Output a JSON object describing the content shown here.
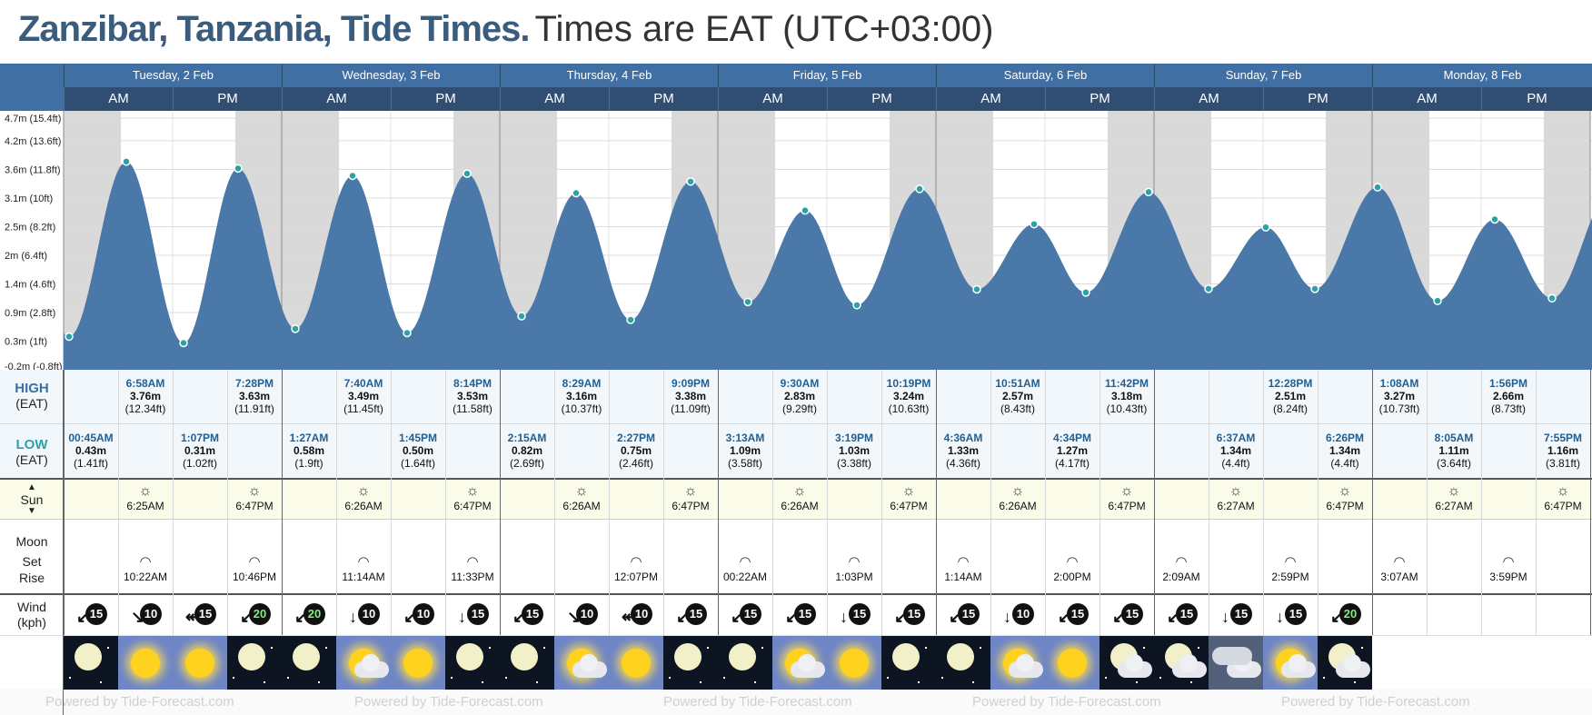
{
  "title": {
    "location": "Zanzibar, Tanzania, Tide Times.",
    "timezone": "Times are EAT (UTC+03:00)"
  },
  "days": [
    "Tuesday, 2 Feb",
    "Wednesday, 3 Feb",
    "Thursday, 4 Feb",
    "Friday, 5 Feb",
    "Saturday, 6 Feb",
    "Sunday, 7 Feb",
    "Monday, 8 Feb"
  ],
  "am_label": "AM",
  "pm_label": "PM",
  "y_axis": [
    "4.7m (15.4ft)",
    "4.2m (13.6ft)",
    "3.6m (11.8ft)",
    "3.1m (10ft)",
    "2.5m (8.2ft)",
    "2m (6.4ft)",
    "1.4m (4.6ft)",
    "0.9m (2.8ft)",
    "0.3m (1ft)",
    "-0.2m (-0.8ft)"
  ],
  "labels": {
    "high": "HIGH",
    "high_tz": "(EAT)",
    "low": "LOW",
    "low_tz": "(EAT)",
    "sun": "Sun",
    "moon": "Moon",
    "set": "Set",
    "rise": "Rise",
    "wind": "Wind",
    "wind_unit": "(kph)"
  },
  "high_tides": [
    {
      "col": 1,
      "time": "6:58AM",
      "m": "3.76m",
      "ft": "(12.34ft)"
    },
    {
      "col": 3,
      "time": "7:28PM",
      "m": "3.63m",
      "ft": "(11.91ft)"
    },
    {
      "col": 5,
      "time": "7:40AM",
      "m": "3.49m",
      "ft": "(11.45ft)"
    },
    {
      "col": 7,
      "time": "8:14PM",
      "m": "3.53m",
      "ft": "(11.58ft)"
    },
    {
      "col": 9,
      "time": "8:29AM",
      "m": "3.16m",
      "ft": "(10.37ft)"
    },
    {
      "col": 11,
      "time": "9:09PM",
      "m": "3.38m",
      "ft": "(11.09ft)"
    },
    {
      "col": 13,
      "time": "9:30AM",
      "m": "2.83m",
      "ft": "(9.29ft)"
    },
    {
      "col": 15,
      "time": "10:19PM",
      "m": "3.24m",
      "ft": "(10.63ft)"
    },
    {
      "col": 17,
      "time": "10:51AM",
      "m": "2.57m",
      "ft": "(8.43ft)"
    },
    {
      "col": 19,
      "time": "11:42PM",
      "m": "3.18m",
      "ft": "(10.43ft)"
    },
    {
      "col": 22,
      "time": "12:28PM",
      "m": "2.51m",
      "ft": "(8.24ft)"
    },
    {
      "col": 24,
      "time": "1:08AM",
      "m": "3.27m",
      "ft": "(10.73ft)"
    },
    {
      "col": 26,
      "time": "1:56PM",
      "m": "2.66m",
      "ft": "(8.73ft)"
    }
  ],
  "low_tides": [
    {
      "col": 0,
      "time": "00:45AM",
      "m": "0.43m",
      "ft": "(1.41ft)"
    },
    {
      "col": 2,
      "time": "1:07PM",
      "m": "0.31m",
      "ft": "(1.02ft)"
    },
    {
      "col": 4,
      "time": "1:27AM",
      "m": "0.58m",
      "ft": "(1.9ft)"
    },
    {
      "col": 6,
      "time": "1:45PM",
      "m": "0.50m",
      "ft": "(1.64ft)"
    },
    {
      "col": 8,
      "time": "2:15AM",
      "m": "0.82m",
      "ft": "(2.69ft)"
    },
    {
      "col": 10,
      "time": "2:27PM",
      "m": "0.75m",
      "ft": "(2.46ft)"
    },
    {
      "col": 12,
      "time": "3:13AM",
      "m": "1.09m",
      "ft": "(3.58ft)"
    },
    {
      "col": 14,
      "time": "3:19PM",
      "m": "1.03m",
      "ft": "(3.38ft)"
    },
    {
      "col": 16,
      "time": "4:36AM",
      "m": "1.33m",
      "ft": "(4.36ft)"
    },
    {
      "col": 18,
      "time": "4:34PM",
      "m": "1.27m",
      "ft": "(4.17ft)"
    },
    {
      "col": 21,
      "time": "6:37AM",
      "m": "1.34m",
      "ft": "(4.4ft)"
    },
    {
      "col": 23,
      "time": "6:26PM",
      "m": "1.34m",
      "ft": "(4.4ft)"
    },
    {
      "col": 25,
      "time": "8:05AM",
      "m": "1.11m",
      "ft": "(3.64ft)"
    },
    {
      "col": 27,
      "time": "7:55PM",
      "m": "1.16m",
      "ft": "(3.81ft)"
    }
  ],
  "sun_times": [
    {
      "col": 1,
      "kind": "sunrise",
      "time": "6:25AM"
    },
    {
      "col": 3,
      "kind": "sunset",
      "time": "6:47PM"
    },
    {
      "col": 5,
      "kind": "sunrise",
      "time": "6:26AM"
    },
    {
      "col": 7,
      "kind": "sunset",
      "time": "6:47PM"
    },
    {
      "col": 9,
      "kind": "sunrise",
      "time": "6:26AM"
    },
    {
      "col": 11,
      "kind": "sunset",
      "time": "6:47PM"
    },
    {
      "col": 13,
      "kind": "sunrise",
      "time": "6:26AM"
    },
    {
      "col": 15,
      "kind": "sunset",
      "time": "6:47PM"
    },
    {
      "col": 17,
      "kind": "sunrise",
      "time": "6:26AM"
    },
    {
      "col": 19,
      "kind": "sunset",
      "time": "6:47PM"
    },
    {
      "col": 21,
      "kind": "sunrise",
      "time": "6:27AM"
    },
    {
      "col": 23,
      "kind": "sunset",
      "time": "6:47PM"
    },
    {
      "col": 25,
      "kind": "sunrise",
      "time": "6:27AM"
    },
    {
      "col": 27,
      "kind": "sunset",
      "time": "6:47PM"
    }
  ],
  "moon_times": [
    {
      "col": 1,
      "time": "10:22AM"
    },
    {
      "col": 3,
      "time": "10:46PM"
    },
    {
      "col": 5,
      "time": "11:14AM"
    },
    {
      "col": 7,
      "time": "11:33PM"
    },
    {
      "col": 10,
      "time": "12:07PM"
    },
    {
      "col": 12,
      "time": "00:22AM"
    },
    {
      "col": 14,
      "time": "1:03PM"
    },
    {
      "col": 16,
      "time": "1:14AM"
    },
    {
      "col": 18,
      "time": "2:00PM"
    },
    {
      "col": 20,
      "time": "2:09AM"
    },
    {
      "col": 22,
      "time": "2:59PM"
    },
    {
      "col": 24,
      "time": "3:07AM"
    },
    {
      "col": 26,
      "time": "3:59PM"
    }
  ],
  "wind": [
    {
      "speed": "15",
      "arrow": "↙",
      "color": "#ffffff"
    },
    {
      "speed": "10",
      "arrow": "↘",
      "color": "#ffffff"
    },
    {
      "speed": "15",
      "arrow": "↞",
      "color": "#ffffff"
    },
    {
      "speed": "20",
      "arrow": "↙",
      "color": "#7ef07e"
    },
    {
      "speed": "20",
      "arrow": "↙",
      "color": "#7ef07e"
    },
    {
      "speed": "10",
      "arrow": "↓",
      "color": "#ffffff"
    },
    {
      "speed": "10",
      "arrow": "↙",
      "color": "#ffffff"
    },
    {
      "speed": "15",
      "arrow": "↓",
      "color": "#ffffff"
    },
    {
      "speed": "15",
      "arrow": "↙",
      "color": "#ffffff"
    },
    {
      "speed": "10",
      "arrow": "↘",
      "color": "#ffffff"
    },
    {
      "speed": "10",
      "arrow": "↞",
      "color": "#ffffff"
    },
    {
      "speed": "15",
      "arrow": "↙",
      "color": "#ffffff"
    },
    {
      "speed": "15",
      "arrow": "↙",
      "color": "#ffffff"
    },
    {
      "speed": "15",
      "arrow": "↙",
      "color": "#ffffff"
    },
    {
      "speed": "15",
      "arrow": "↓",
      "color": "#ffffff"
    },
    {
      "speed": "15",
      "arrow": "↙",
      "color": "#ffffff"
    },
    {
      "speed": "15",
      "arrow": "↙",
      "color": "#ffffff"
    },
    {
      "speed": "10",
      "arrow": "↓",
      "color": "#ffffff"
    },
    {
      "speed": "15",
      "arrow": "↙",
      "color": "#ffffff"
    },
    {
      "speed": "15",
      "arrow": "↙",
      "color": "#ffffff"
    },
    {
      "speed": "15",
      "arrow": "↙",
      "color": "#ffffff"
    },
    {
      "speed": "15",
      "arrow": "↓",
      "color": "#ffffff"
    },
    {
      "speed": "15",
      "arrow": "↓",
      "color": "#ffffff"
    },
    {
      "speed": "20",
      "arrow": "↙",
      "color": "#7ef07e"
    }
  ],
  "weather": [
    "night-moon",
    "sunny",
    "sunny",
    "night-moon",
    "night-moon",
    "sun-cloud",
    "sunny",
    "night-moon",
    "night-moon",
    "sun-cloud",
    "sunny",
    "night-moon",
    "night-moon",
    "sun-cloud",
    "sunny",
    "night-moon",
    "night-moon",
    "sun-cloud",
    "sunny",
    "night-cloud",
    "night-cloud",
    "overcast",
    "sun-cloud",
    "night-cloud"
  ],
  "footer": "Powered by Tide-Forecast.com",
  "chart_data": {
    "type": "area",
    "y_unit": "m",
    "ylim": [
      -0.2,
      4.7
    ],
    "x_slots": 28,
    "series": [
      {
        "points": [
          {
            "slot": 0.1,
            "value": 0.43
          },
          {
            "slot": 1.15,
            "value": 3.76
          },
          {
            "slot": 2.2,
            "value": 0.31
          },
          {
            "slot": 3.2,
            "value": 3.63
          },
          {
            "slot": 4.25,
            "value": 0.58
          },
          {
            "slot": 5.3,
            "value": 3.49
          },
          {
            "slot": 6.3,
            "value": 0.5
          },
          {
            "slot": 7.4,
            "value": 3.53
          },
          {
            "slot": 8.4,
            "value": 0.82
          },
          {
            "slot": 9.4,
            "value": 3.16
          },
          {
            "slot": 10.4,
            "value": 0.75
          },
          {
            "slot": 11.5,
            "value": 3.38
          },
          {
            "slot": 12.55,
            "value": 1.09
          },
          {
            "slot": 13.6,
            "value": 2.83
          },
          {
            "slot": 14.55,
            "value": 1.03
          },
          {
            "slot": 15.7,
            "value": 3.24
          },
          {
            "slot": 16.75,
            "value": 1.33
          },
          {
            "slot": 17.8,
            "value": 2.57
          },
          {
            "slot": 18.75,
            "value": 1.27
          },
          {
            "slot": 19.9,
            "value": 3.18
          },
          {
            "slot": 21.0,
            "value": 1.34
          },
          {
            "slot": 22.05,
            "value": 2.51
          },
          {
            "slot": 22.95,
            "value": 1.34
          },
          {
            "slot": 24.1,
            "value": 3.27
          },
          {
            "slot": 25.2,
            "value": 1.11
          },
          {
            "slot": 26.25,
            "value": 2.66
          },
          {
            "slot": 27.3,
            "value": 1.16
          }
        ]
      }
    ],
    "night_slots": [
      [
        0,
        1.05
      ],
      [
        3.15,
        5.05
      ],
      [
        7.15,
        9.05
      ],
      [
        11.15,
        13.05
      ],
      [
        15.15,
        17.05
      ],
      [
        19.15,
        21.05
      ],
      [
        23.15,
        25.05
      ],
      [
        27.15,
        28
      ]
    ],
    "fill_color": "#4a78a8",
    "night_color": "#d9d9d9",
    "marker_color": "#2aa3a8"
  }
}
